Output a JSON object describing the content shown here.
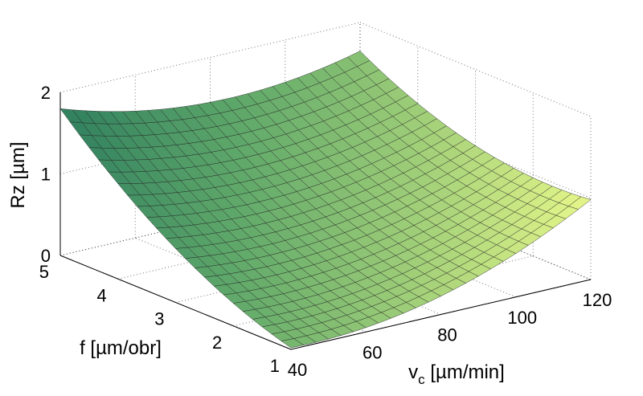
{
  "chart_data": {
    "type": "surface",
    "title": "",
    "xlabel": "v",
    "xlabel_sub": "c",
    "xlabel_unit": " [µm/min]",
    "ylabel": "f [µm/obr]",
    "zlabel": "Rz [µm]",
    "xlim": [
      40,
      120
    ],
    "ylim": [
      1,
      5
    ],
    "zlim": [
      0,
      2
    ],
    "x_ticks": [
      40,
      60,
      80,
      100,
      120
    ],
    "y_ticks": [
      1,
      2,
      3,
      4,
      5
    ],
    "z_ticks": [
      0,
      1,
      2
    ],
    "x_tick_labels": [
      "40",
      "60",
      "80",
      "100",
      "120"
    ],
    "y_tick_labels": [
      "1",
      "2",
      "3",
      "4",
      "5"
    ],
    "z_tick_labels": [
      "0",
      "1",
      "2"
    ],
    "grid": true,
    "colormap": [
      "#2f7f5f",
      "#5fa86a",
      "#9fce78",
      "#e6f78a"
    ],
    "corners": [
      {
        "vc": 40,
        "f": 5,
        "rz": 1.8
      },
      {
        "vc": 120,
        "f": 5,
        "rz": 1.65
      },
      {
        "vc": 120,
        "f": 1,
        "rz": 0.98
      },
      {
        "vc": 40,
        "f": 1,
        "rz": 0.02
      },
      {
        "vc": 80,
        "f": 3,
        "rz": 0.62
      }
    ],
    "grid_resolution": 24
  }
}
